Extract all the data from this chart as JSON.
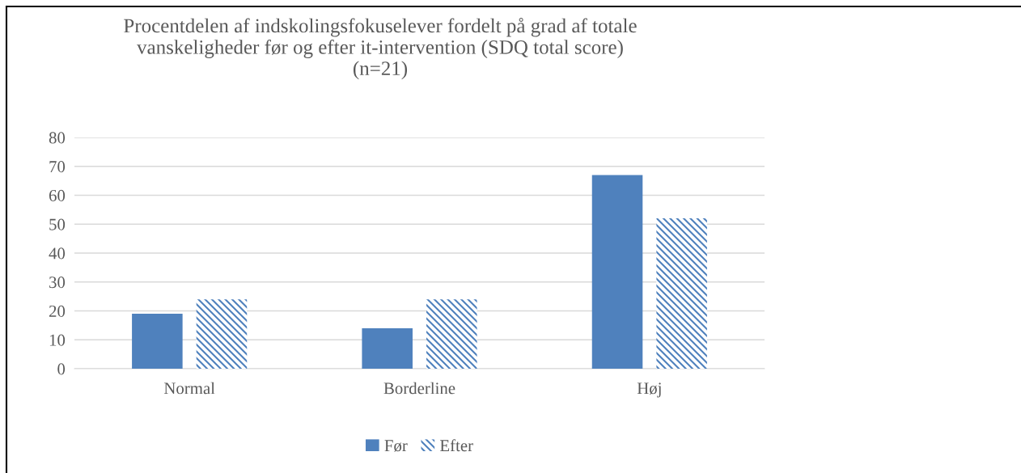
{
  "chart_data": {
    "type": "bar",
    "title": "Procentdelen af indskolingsfokuselever fordelt på grad af totale\nvanskeligheder før og efter it-intervention (SDQ total score)\n(n=21)",
    "categories": [
      "Normal",
      "Borderline",
      "Høj"
    ],
    "series": [
      {
        "name": "Før",
        "color": "#4f81bd",
        "values": [
          19,
          14,
          67
        ]
      },
      {
        "name": "Efter",
        "color": "#4f81bd",
        "values": [
          24,
          24,
          52
        ]
      }
    ],
    "ylim": [
      0,
      80
    ],
    "yticks": [
      0,
      10,
      20,
      30,
      40,
      50,
      60,
      70,
      80
    ],
    "grid": "y",
    "legend": "bottom"
  }
}
